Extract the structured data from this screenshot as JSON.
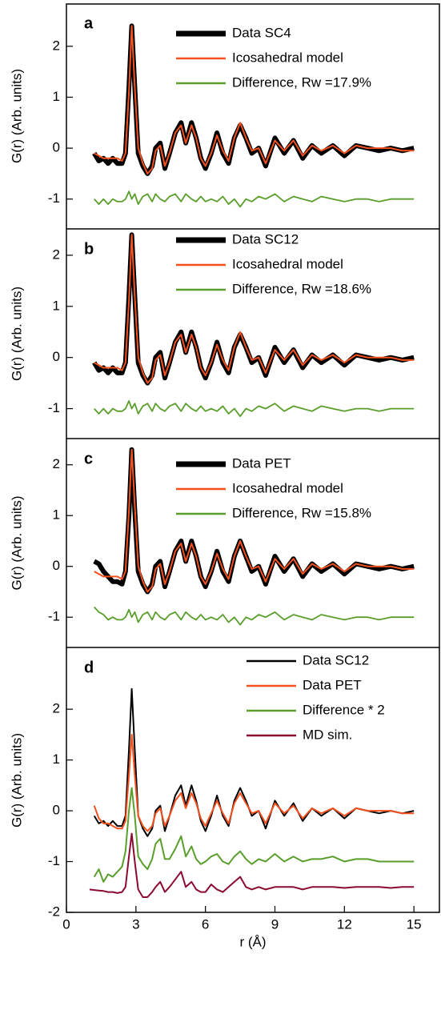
{
  "chart_data": [
    {
      "type": "line",
      "label": "a",
      "ylabel": "G(r) (Arb. units)",
      "xlim": [
        0,
        16.1
      ],
      "ylim": [
        -1.57,
        2.83
      ],
      "yticks": [
        -1,
        0,
        1,
        2
      ],
      "x": [
        1.2,
        1.4,
        1.6,
        1.8,
        2.0,
        2.2,
        2.4,
        2.55,
        2.7,
        2.82,
        2.95,
        3.1,
        3.3,
        3.5,
        3.7,
        3.85,
        4.05,
        4.25,
        4.45,
        4.7,
        4.95,
        5.15,
        5.4,
        5.6,
        5.8,
        6.0,
        6.25,
        6.5,
        6.75,
        7.0,
        7.25,
        7.5,
        7.75,
        8.0,
        8.3,
        8.6,
        9.0,
        9.4,
        9.8,
        10.2,
        10.6,
        11.0,
        11.5,
        12.0,
        12.5,
        13.0,
        13.5,
        14.0,
        14.5,
        15.0
      ],
      "series": [
        {
          "name": "Data SC4",
          "color": "#000000",
          "values": [
            -0.1,
            -0.25,
            -0.2,
            -0.3,
            -0.2,
            -0.3,
            -0.3,
            -0.1,
            1.2,
            2.4,
            1.2,
            -0.1,
            -0.35,
            -0.5,
            -0.35,
            0.0,
            0.1,
            -0.4,
            -0.1,
            0.3,
            0.5,
            0.1,
            0.5,
            0.2,
            -0.2,
            -0.4,
            -0.1,
            0.3,
            -0.1,
            -0.3,
            0.2,
            0.45,
            0.2,
            -0.1,
            0.0,
            -0.35,
            0.2,
            -0.1,
            0.15,
            -0.2,
            0.05,
            -0.1,
            0.05,
            -0.15,
            0.05,
            0.0,
            -0.05,
            0.0,
            -0.05,
            0.0
          ]
        },
        {
          "name": "Icosahedral model",
          "color": "#f4511e",
          "values": [
            -0.1,
            -0.15,
            -0.2,
            -0.2,
            -0.2,
            -0.2,
            -0.25,
            -0.1,
            1.1,
            2.4,
            1.2,
            0.0,
            -0.3,
            -0.5,
            -0.4,
            -0.05,
            0.05,
            -0.35,
            -0.1,
            0.3,
            0.45,
            0.1,
            0.45,
            0.2,
            -0.2,
            -0.35,
            -0.1,
            0.25,
            -0.05,
            -0.25,
            0.2,
            0.5,
            0.2,
            -0.05,
            0.0,
            -0.3,
            0.15,
            -0.05,
            0.15,
            -0.15,
            0.05,
            -0.05,
            0.05,
            -0.1,
            0.05,
            0.0,
            0.0,
            0.0,
            -0.05,
            -0.05
          ]
        },
        {
          "name": "Difference, Rw =17.9%",
          "color": "#5a9e2c",
          "values": [
            -1.0,
            -1.1,
            -1.0,
            -1.1,
            -1.0,
            -1.05,
            -1.05,
            -1.0,
            -0.85,
            -1.0,
            -0.9,
            -1.1,
            -0.95,
            -0.9,
            -1.05,
            -0.9,
            -1.0,
            -1.05,
            -0.95,
            -0.9,
            -1.05,
            -0.9,
            -1.0,
            -1.05,
            -0.95,
            -1.05,
            -1.0,
            -1.05,
            -0.95,
            -1.1,
            -1.0,
            -1.15,
            -1.0,
            -1.05,
            -0.95,
            -1.0,
            -0.9,
            -1.05,
            -0.95,
            -1.0,
            -1.05,
            -0.95,
            -1.0,
            -1.05,
            -1.0,
            -1.0,
            -1.05,
            -1.0,
            -1.0,
            -1.0
          ]
        }
      ]
    },
    {
      "type": "line",
      "label": "b",
      "ylabel": "G(r) (Arb. units)",
      "xlim": [
        0,
        16.1
      ],
      "ylim": [
        -1.57,
        2.5
      ],
      "yticks": [
        -1,
        0,
        1,
        2
      ],
      "x": [
        1.2,
        1.4,
        1.6,
        1.8,
        2.0,
        2.2,
        2.4,
        2.55,
        2.7,
        2.82,
        2.95,
        3.1,
        3.3,
        3.5,
        3.7,
        3.85,
        4.05,
        4.25,
        4.45,
        4.7,
        4.95,
        5.15,
        5.4,
        5.6,
        5.8,
        6.0,
        6.25,
        6.5,
        6.75,
        7.0,
        7.25,
        7.5,
        7.75,
        8.0,
        8.3,
        8.6,
        9.0,
        9.4,
        9.8,
        10.2,
        10.6,
        11.0,
        11.5,
        12.0,
        12.5,
        13.0,
        13.5,
        14.0,
        14.5,
        15.0
      ],
      "series": [
        {
          "name": "Data SC12",
          "color": "#000000",
          "values": [
            -0.1,
            -0.25,
            -0.2,
            -0.3,
            -0.2,
            -0.3,
            -0.3,
            -0.1,
            1.2,
            2.4,
            1.2,
            -0.1,
            -0.35,
            -0.5,
            -0.35,
            0.0,
            0.1,
            -0.4,
            -0.1,
            0.3,
            0.5,
            0.1,
            0.5,
            0.2,
            -0.2,
            -0.4,
            -0.1,
            0.3,
            -0.1,
            -0.3,
            0.2,
            0.45,
            0.2,
            -0.1,
            0.0,
            -0.35,
            0.2,
            -0.1,
            0.15,
            -0.2,
            0.05,
            -0.1,
            0.05,
            -0.15,
            0.05,
            0.0,
            -0.05,
            0.0,
            -0.05,
            0.0
          ]
        },
        {
          "name": "Icosahedral model",
          "color": "#f4511e",
          "values": [
            -0.1,
            -0.15,
            -0.2,
            -0.2,
            -0.2,
            -0.2,
            -0.25,
            -0.1,
            1.1,
            2.4,
            1.2,
            0.0,
            -0.3,
            -0.5,
            -0.4,
            -0.05,
            0.05,
            -0.35,
            -0.1,
            0.3,
            0.45,
            0.1,
            0.45,
            0.2,
            -0.2,
            -0.35,
            -0.1,
            0.25,
            -0.05,
            -0.25,
            0.2,
            0.5,
            0.2,
            -0.05,
            0.0,
            -0.3,
            0.15,
            -0.05,
            0.15,
            -0.15,
            0.05,
            -0.05,
            0.05,
            -0.1,
            0.05,
            0.0,
            0.0,
            0.0,
            -0.05,
            -0.05
          ]
        },
        {
          "name": "Difference, Rw =18.6%",
          "color": "#5a9e2c",
          "values": [
            -1.0,
            -1.1,
            -1.0,
            -1.1,
            -1.0,
            -1.05,
            -1.05,
            -1.0,
            -0.85,
            -1.0,
            -0.9,
            -1.1,
            -0.95,
            -0.9,
            -1.05,
            -0.9,
            -1.0,
            -1.05,
            -0.95,
            -0.9,
            -1.05,
            -0.9,
            -1.0,
            -1.05,
            -0.95,
            -1.05,
            -1.0,
            -1.05,
            -0.95,
            -1.1,
            -1.0,
            -1.15,
            -1.0,
            -1.05,
            -0.95,
            -1.0,
            -0.9,
            -1.05,
            -0.95,
            -1.0,
            -1.05,
            -0.95,
            -1.0,
            -1.05,
            -1.0,
            -1.0,
            -1.05,
            -1.0,
            -1.0,
            -1.0
          ]
        }
      ]
    },
    {
      "type": "line",
      "label": "c",
      "ylabel": "G(r) (Arb. units)",
      "xlim": [
        0,
        16.1
      ],
      "ylim": [
        -1.58,
        2.5
      ],
      "yticks": [
        -1,
        0,
        1,
        2
      ],
      "x": [
        1.2,
        1.4,
        1.6,
        1.8,
        2.0,
        2.2,
        2.4,
        2.55,
        2.7,
        2.82,
        2.95,
        3.1,
        3.3,
        3.5,
        3.7,
        3.85,
        4.05,
        4.25,
        4.45,
        4.7,
        4.95,
        5.15,
        5.4,
        5.6,
        5.8,
        6.0,
        6.25,
        6.5,
        6.75,
        7.0,
        7.25,
        7.5,
        7.75,
        8.0,
        8.3,
        8.6,
        9.0,
        9.4,
        9.8,
        10.2,
        10.6,
        11.0,
        11.5,
        12.0,
        12.5,
        13.0,
        13.5,
        14.0,
        14.5,
        15.0
      ],
      "series": [
        {
          "name": "Data PET",
          "color": "#000000",
          "values": [
            0.1,
            0.05,
            -0.1,
            -0.2,
            -0.3,
            -0.3,
            -0.35,
            -0.1,
            1.0,
            2.3,
            1.1,
            -0.1,
            -0.35,
            -0.5,
            -0.35,
            0.0,
            0.1,
            -0.4,
            -0.1,
            0.3,
            0.5,
            0.1,
            0.5,
            0.2,
            -0.2,
            -0.4,
            -0.1,
            0.3,
            -0.1,
            -0.3,
            0.2,
            0.5,
            0.2,
            -0.1,
            0.0,
            -0.35,
            0.2,
            -0.1,
            0.15,
            -0.2,
            0.05,
            -0.1,
            0.05,
            -0.15,
            0.05,
            0.0,
            -0.05,
            0.0,
            -0.05,
            0.0
          ]
        },
        {
          "name": "Icosahedral model",
          "color": "#f4511e",
          "values": [
            -0.1,
            -0.15,
            -0.2,
            -0.2,
            -0.2,
            -0.2,
            -0.25,
            -0.1,
            1.1,
            2.3,
            1.2,
            0.0,
            -0.3,
            -0.5,
            -0.4,
            -0.05,
            0.05,
            -0.35,
            -0.1,
            0.3,
            0.45,
            0.1,
            0.45,
            0.2,
            -0.2,
            -0.35,
            -0.1,
            0.25,
            -0.05,
            -0.25,
            0.2,
            0.5,
            0.2,
            -0.05,
            0.0,
            -0.3,
            0.15,
            -0.05,
            0.15,
            -0.15,
            0.05,
            -0.05,
            0.05,
            -0.1,
            0.05,
            0.0,
            0.0,
            0.0,
            -0.05,
            -0.05
          ]
        },
        {
          "name": "Difference, Rw =15.8%",
          "color": "#5a9e2c",
          "values": [
            -0.8,
            -0.9,
            -0.95,
            -1.05,
            -1.0,
            -1.05,
            -1.05,
            -1.0,
            -0.85,
            -1.0,
            -0.9,
            -1.1,
            -0.95,
            -0.9,
            -1.05,
            -0.9,
            -1.0,
            -1.05,
            -0.95,
            -0.9,
            -1.05,
            -0.9,
            -1.0,
            -1.05,
            -0.95,
            -1.05,
            -1.0,
            -1.05,
            -0.95,
            -1.1,
            -1.0,
            -1.15,
            -1.0,
            -1.05,
            -0.95,
            -1.0,
            -0.9,
            -1.05,
            -0.95,
            -1.0,
            -1.05,
            -0.95,
            -1.0,
            -1.05,
            -1.0,
            -1.0,
            -1.05,
            -1.0,
            -1.0,
            -1.0
          ]
        }
      ]
    },
    {
      "type": "line",
      "label": "d",
      "ylabel": "G(r) (Arb. units)",
      "xlabel": "r (Å)",
      "xlim": [
        0,
        16.1
      ],
      "ylim": [
        -2,
        3.2
      ],
      "yticks": [
        -2,
        -1,
        0,
        1,
        2
      ],
      "xticks": [
        0,
        3,
        6,
        9,
        12,
        15
      ],
      "x": [
        1.0,
        1.2,
        1.4,
        1.6,
        1.8,
        2.0,
        2.2,
        2.4,
        2.55,
        2.7,
        2.82,
        2.95,
        3.1,
        3.3,
        3.5,
        3.7,
        3.85,
        4.05,
        4.25,
        4.45,
        4.7,
        4.95,
        5.15,
        5.4,
        5.6,
        5.8,
        6.0,
        6.25,
        6.5,
        6.75,
        7.0,
        7.25,
        7.5,
        7.75,
        8.0,
        8.3,
        8.6,
        9.0,
        9.4,
        9.8,
        10.2,
        10.6,
        11.0,
        11.5,
        12.0,
        12.5,
        13.0,
        13.5,
        14.0,
        14.5,
        15.0
      ],
      "series": [
        {
          "name": "Data SC12",
          "color": "#000000",
          "values": [
            null,
            -0.1,
            -0.25,
            -0.2,
            -0.3,
            -0.2,
            -0.3,
            -0.3,
            -0.1,
            1.2,
            2.4,
            1.2,
            -0.1,
            -0.35,
            -0.5,
            -0.35,
            0.0,
            0.1,
            -0.4,
            -0.1,
            0.3,
            0.5,
            0.1,
            0.5,
            0.2,
            -0.2,
            -0.4,
            -0.1,
            0.3,
            -0.1,
            -0.3,
            0.2,
            0.45,
            0.2,
            -0.1,
            0.0,
            -0.35,
            0.2,
            -0.1,
            0.15,
            -0.2,
            0.05,
            -0.1,
            0.05,
            -0.15,
            0.05,
            0.0,
            -0.05,
            0.0,
            -0.05,
            0.0
          ]
        },
        {
          "name": "Data PET",
          "color": "#f4511e",
          "values": [
            null,
            0.1,
            -0.15,
            -0.25,
            -0.25,
            -0.3,
            -0.35,
            -0.35,
            -0.2,
            0.7,
            1.5,
            0.7,
            -0.1,
            -0.3,
            -0.4,
            -0.3,
            -0.05,
            0.05,
            -0.3,
            -0.1,
            0.2,
            0.35,
            0.05,
            0.35,
            0.15,
            -0.15,
            -0.3,
            -0.05,
            0.2,
            -0.05,
            -0.25,
            0.15,
            0.35,
            0.15,
            -0.05,
            0.0,
            -0.25,
            0.15,
            -0.05,
            0.1,
            -0.15,
            0.05,
            -0.05,
            0.05,
            -0.1,
            0.05,
            0.0,
            0.0,
            0.0,
            -0.05,
            -0.05
          ]
        },
        {
          "name": "Difference * 2",
          "color": "#5a9e2c",
          "values": [
            null,
            -1.3,
            -1.15,
            -1.4,
            -1.25,
            -1.3,
            -1.2,
            -1.1,
            -0.8,
            0.0,
            0.45,
            -0.1,
            -0.9,
            -1.05,
            -1.15,
            -0.95,
            -0.65,
            -0.55,
            -0.95,
            -0.95,
            -0.75,
            -0.5,
            -0.9,
            -0.7,
            -0.95,
            -1.05,
            -1.0,
            -0.9,
            -0.85,
            -1.0,
            -1.05,
            -0.9,
            -0.8,
            -0.95,
            -1.05,
            -0.95,
            -1.0,
            -0.85,
            -1.0,
            -0.9,
            -1.0,
            -0.95,
            -0.95,
            -0.9,
            -1.0,
            -0.95,
            -0.95,
            -1.0,
            -1.0,
            -1.0,
            -1.0
          ]
        },
        {
          "name": "MD sim.",
          "color": "#8b0a30",
          "values": [
            -1.55,
            -1.56,
            -1.57,
            -1.58,
            -1.6,
            -1.6,
            -1.62,
            -1.6,
            -1.5,
            -0.9,
            -0.45,
            -1.0,
            -1.55,
            -1.7,
            -1.7,
            -1.6,
            -1.5,
            -1.4,
            -1.6,
            -1.5,
            -1.35,
            -1.2,
            -1.5,
            -1.4,
            -1.55,
            -1.6,
            -1.6,
            -1.45,
            -1.55,
            -1.6,
            -1.5,
            -1.4,
            -1.3,
            -1.5,
            -1.55,
            -1.5,
            -1.55,
            -1.5,
            -1.5,
            -1.5,
            -1.55,
            -1.5,
            -1.5,
            -1.5,
            -1.52,
            -1.5,
            -1.5,
            -1.5,
            -1.52,
            -1.5,
            -1.5
          ]
        }
      ]
    }
  ]
}
